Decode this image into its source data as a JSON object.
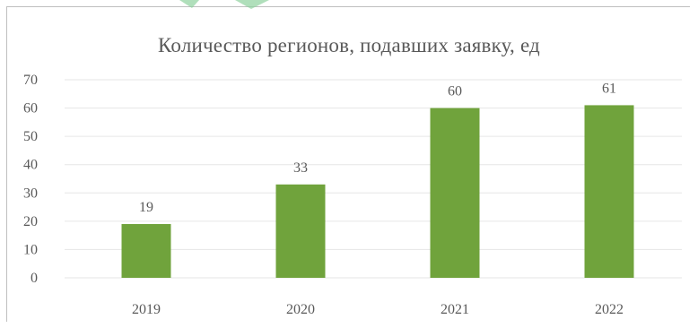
{
  "chart_data": {
    "type": "bar",
    "title": "Количество регионов, подавших заявку, ед",
    "categories": [
      "2019",
      "2020",
      "2021",
      "2022"
    ],
    "values": [
      19,
      33,
      60,
      61
    ],
    "data_labels": [
      "19",
      "33",
      "60",
      "61"
    ],
    "ylim": [
      0,
      70
    ],
    "yticks": [
      "0",
      "10",
      "20",
      "30",
      "40",
      "50",
      "60",
      "70"
    ],
    "xlabel": "",
    "ylabel": "",
    "grid": true,
    "legend": "none",
    "bar_color": "#70a33c",
    "grid_color": "#e6e6e6",
    "text_color": "#595959"
  }
}
